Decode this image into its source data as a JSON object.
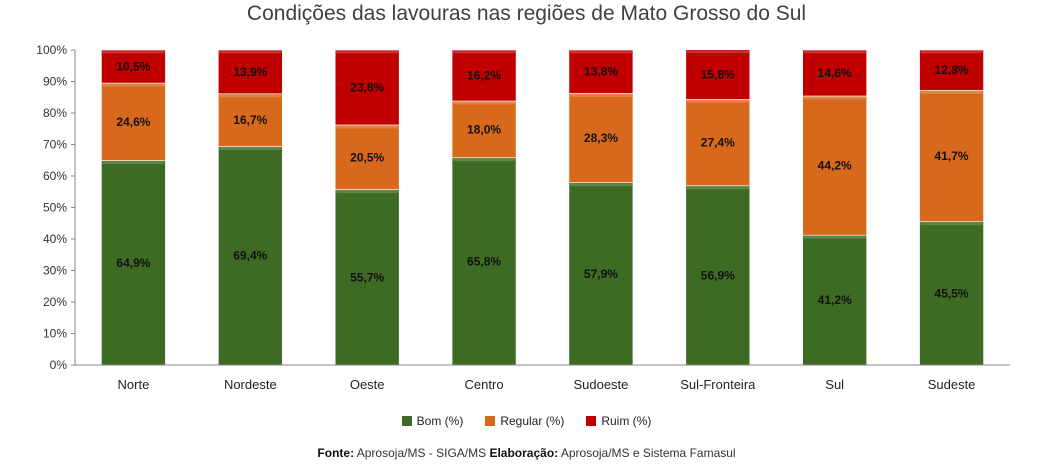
{
  "chart_data": {
    "type": "bar",
    "stacked": true,
    "title": "Condições das lavouras nas regiões de Mato Grosso do Sul",
    "categories": [
      "Norte",
      "Nordeste",
      "Oeste",
      "Centro",
      "Sudoeste",
      "Sul-Fronteira",
      "Sul",
      "Sudeste"
    ],
    "series": [
      {
        "name": "Bom (%)",
        "color": "#3e6b24",
        "values": [
          64.9,
          69.4,
          55.7,
          65.8,
          57.9,
          56.9,
          41.2,
          45.5
        ],
        "labels": [
          "64,9%",
          "69,4%",
          "55,7%",
          "65,8%",
          "57,9%",
          "56,9%",
          "41,2%",
          "45,5%"
        ]
      },
      {
        "name": "Regular (%)",
        "color": "#d8691c",
        "values": [
          24.6,
          16.7,
          20.5,
          18.0,
          28.3,
          27.4,
          44.2,
          41.7
        ],
        "labels": [
          "24,6%",
          "16,7%",
          "20,5%",
          "18,0%",
          "28,3%",
          "27,4%",
          "44,2%",
          "41,7%"
        ]
      },
      {
        "name": "Ruim (%)",
        "color": "#c00000",
        "values": [
          10.5,
          13.9,
          23.8,
          16.2,
          13.8,
          15.8,
          14.6,
          12.8
        ],
        "labels": [
          "10,5%",
          "13,9%",
          "23,8%",
          "16,2%",
          "13,8%",
          "15,8%",
          "14,6%",
          "12,8%"
        ]
      }
    ],
    "yticks": [
      "0%",
      "10%",
      "20%",
      "30%",
      "40%",
      "50%",
      "60%",
      "70%",
      "80%",
      "90%",
      "100%"
    ],
    "ylim": [
      0,
      100
    ],
    "grid": false,
    "legend": "bottom"
  },
  "legend": {
    "bom": "Bom (%)",
    "regular": "Regular (%)",
    "ruim": "Ruim (%)"
  },
  "source": {
    "fonte_label": "Fonte:",
    "fonte_text": "Aprosoja/MS - SIGA/MS",
    "elab_label": "Elaboração:",
    "elab_text": "Aprosoja/MS e Sistema Famasul"
  }
}
